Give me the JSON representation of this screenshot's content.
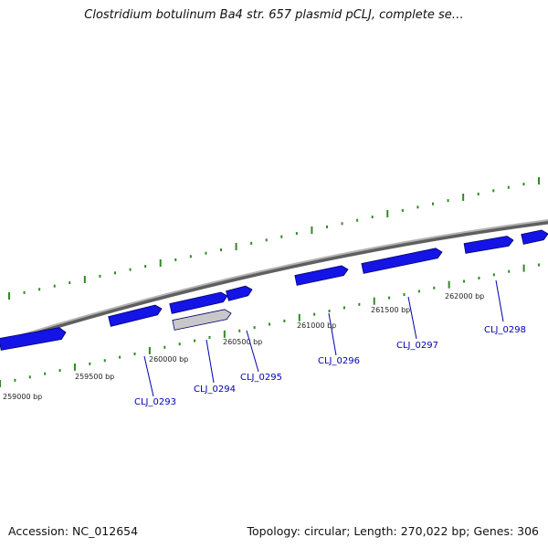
{
  "title": "Clostridium botulinum Ba4 str. 657 plasmid pCLJ, complete se…",
  "footer": {
    "accession": "Accession: NC_012654",
    "summary": "Topology: circular; Length: 270,022 bp; Genes: 306"
  },
  "colors": {
    "forward_gene": "#1414e6",
    "reverse_gene": "#0a0ab4",
    "pseudo_gene": "#c8c8c8",
    "backbone": "#8a8a8a",
    "tick": "#2e8b22",
    "label": "#0000b4"
  },
  "position_labels": [
    "259000 bp",
    "259500 bp",
    "260000 bp",
    "260500 bp",
    "261000 bp",
    "261500 bp",
    "262000 bp"
  ],
  "genes": [
    {
      "name": "CLJ_0293"
    },
    {
      "name": "CLJ_0294"
    },
    {
      "name": "CLJ_0295"
    },
    {
      "name": "CLJ_0296"
    },
    {
      "name": "CLJ_0297"
    },
    {
      "name": "CLJ_0298"
    }
  ]
}
